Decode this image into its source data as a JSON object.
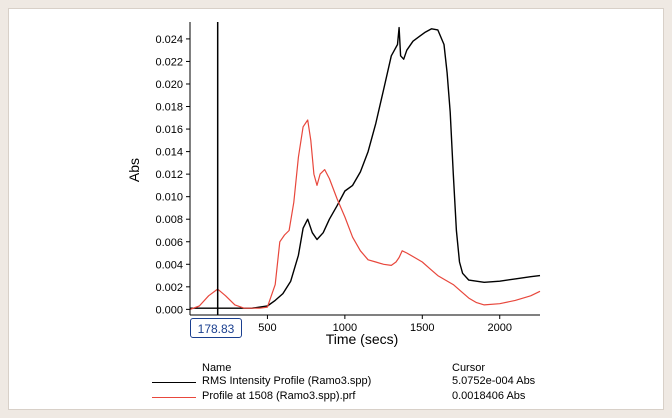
{
  "chart_data": {
    "type": "line",
    "xlabel": "Time (secs)",
    "ylabel": "Abs",
    "xlim": [
      0,
      2260
    ],
    "ylim": [
      -0.0005,
      0.0255
    ],
    "x_ticks": [
      500,
      1000,
      1500,
      2000
    ],
    "y_ticks": [
      0.0,
      0.002,
      0.004,
      0.006,
      0.008,
      0.01,
      0.012,
      0.014,
      0.016,
      0.018,
      0.02,
      0.022,
      0.024
    ],
    "y_tick_labels": [
      "0.000",
      "0.002",
      "0.004",
      "0.006",
      "0.008",
      "0.010",
      "0.012",
      "0.014",
      "0.016",
      "0.018",
      "0.020",
      "0.022",
      "0.024"
    ],
    "cursor": {
      "x": 178.83,
      "label": "178.83"
    },
    "series": [
      {
        "name": "RMS Intensity Profile (Ramo3.spp)",
        "color": "#000000",
        "x": [
          0,
          100,
          200,
          300,
          400,
          500,
          550,
          600,
          650,
          700,
          730,
          760,
          790,
          820,
          860,
          900,
          950,
          1000,
          1050,
          1100,
          1150,
          1200,
          1250,
          1300,
          1320,
          1340,
          1350,
          1360,
          1380,
          1400,
          1440,
          1480,
          1520,
          1560,
          1600,
          1640,
          1660,
          1680,
          1700,
          1720,
          1740,
          1760,
          1800,
          1900,
          2000,
          2100,
          2200,
          2260
        ],
        "y": [
          0.0001,
          0.0001,
          0.0001,
          0.0001,
          0.0001,
          0.0003,
          0.0008,
          0.0014,
          0.0025,
          0.0048,
          0.0072,
          0.008,
          0.0068,
          0.0062,
          0.0068,
          0.008,
          0.0092,
          0.0105,
          0.011,
          0.0122,
          0.014,
          0.0165,
          0.0195,
          0.0225,
          0.023,
          0.0235,
          0.025,
          0.0225,
          0.0222,
          0.023,
          0.0238,
          0.0242,
          0.0246,
          0.0249,
          0.0248,
          0.0235,
          0.021,
          0.0175,
          0.012,
          0.007,
          0.0042,
          0.0032,
          0.0026,
          0.0024,
          0.0025,
          0.0027,
          0.0029,
          0.003
        ]
      },
      {
        "name": "Profile at 1508 (Ramo3.spp).prf",
        "color": "#e8473c",
        "x": [
          0,
          60,
          120,
          178,
          230,
          290,
          350,
          400,
          450,
          500,
          550,
          580,
          610,
          640,
          670,
          700,
          730,
          760,
          780,
          800,
          820,
          840,
          870,
          900,
          950,
          1000,
          1050,
          1100,
          1150,
          1200,
          1250,
          1300,
          1330,
          1350,
          1370,
          1400,
          1450,
          1500,
          1550,
          1600,
          1650,
          1700,
          1750,
          1800,
          1850,
          1900,
          2000,
          2100,
          2200,
          2260
        ],
        "y": [
          0.0,
          0.0003,
          0.0012,
          0.0018,
          0.0012,
          0.0004,
          0.0001,
          0.0001,
          0.0001,
          0.0002,
          0.0022,
          0.006,
          0.0066,
          0.007,
          0.0095,
          0.0135,
          0.0162,
          0.0168,
          0.015,
          0.012,
          0.011,
          0.012,
          0.0124,
          0.0116,
          0.0098,
          0.0082,
          0.0064,
          0.0052,
          0.0044,
          0.0042,
          0.004,
          0.0039,
          0.0042,
          0.0046,
          0.0052,
          0.005,
          0.0046,
          0.0042,
          0.0036,
          0.003,
          0.0026,
          0.0022,
          0.0016,
          0.001,
          0.0006,
          0.0004,
          0.0005,
          0.0008,
          0.0012,
          0.0016
        ]
      }
    ]
  },
  "legend": {
    "name_header": "Name",
    "cursor_header": "Cursor",
    "rows": [
      {
        "name": "RMS Intensity Profile (Ramo3.spp)",
        "value": "5.0752e-004 Abs",
        "color": "#000000"
      },
      {
        "name": "Profile at 1508 (Ramo3.spp).prf",
        "value": "0.0018406 Abs",
        "color": "#e8473c"
      }
    ]
  }
}
